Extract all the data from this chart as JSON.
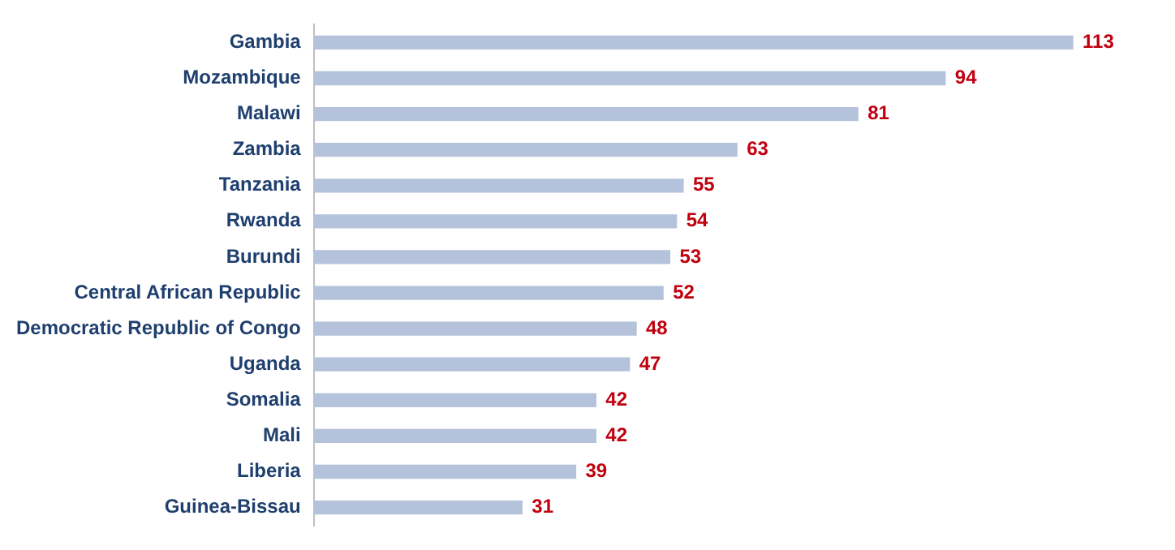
{
  "chart_data": {
    "type": "bar",
    "orientation": "horizontal",
    "categories": [
      "Gambia",
      "Mozambique",
      "Malawi",
      "Zambia",
      "Tanzania",
      "Rwanda",
      "Burundi",
      "Central African Republic",
      "Democratic Republic of Congo",
      "Uganda",
      "Somalia",
      "Mali",
      "Liberia",
      "Guinea-Bissau"
    ],
    "values": [
      113,
      94,
      81,
      63,
      55,
      54,
      53,
      52,
      48,
      47,
      42,
      42,
      39,
      31
    ],
    "color": "#b4c2db",
    "tick_labels": "y",
    "grid": false,
    "legend": false,
    "data_labels": true
  }
}
